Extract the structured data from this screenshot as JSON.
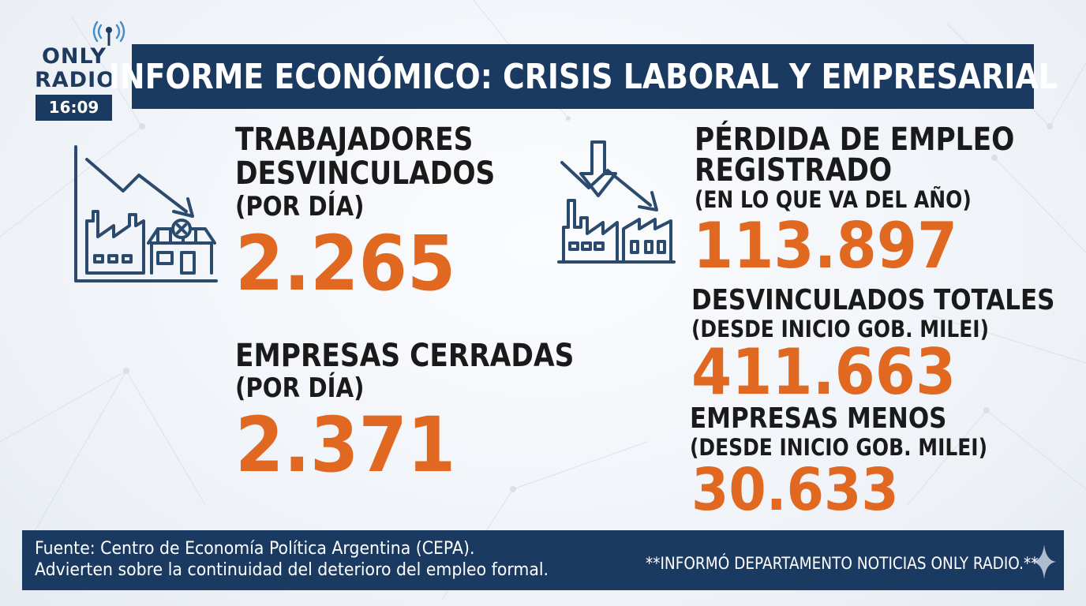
{
  "logo": {
    "line1": "ONLY",
    "line2": "RADIO",
    "time": "16:09"
  },
  "title": "INFORME ECONÓMICO: CRISIS LABORAL Y EMPRESARIAL",
  "left_stats": [
    {
      "label_lines": [
        "TRABAJADORES",
        "DESVINCULADOS"
      ],
      "sublabel": "(POR DÍA)",
      "value": "2.265"
    },
    {
      "label_lines": [
        "EMPRESAS CERRADAS"
      ],
      "sublabel": "(POR DÍA)",
      "value": "2.371"
    }
  ],
  "right_stats": [
    {
      "label_lines": [
        "PÉRDIDA DE EMPLEO",
        "REGISTRADO"
      ],
      "sublabel": "(EN LO QUE VA DEL AÑO)",
      "value": "113.897"
    },
    {
      "label_lines": [
        "DESVINCULADOS TOTALES"
      ],
      "sublabel": "(DESDE INICIO GOB. MILEI)",
      "value": "411.663"
    },
    {
      "label_lines": [
        "EMPRESAS MENOS"
      ],
      "sublabel": "(DESDE INICIO GOB. MILEI)",
      "value": "30.633"
    }
  ],
  "footer": {
    "source_line1": "Fuente: Centro de Economía Política Argentina (CEPA).",
    "source_line2": "Advierten sobre la continuidad del deterioro del empleo formal.",
    "credit": "**INFORMÓ DEPARTAMENTO NOTICIAS ONLY RADIO.**"
  },
  "colors": {
    "navy": "#1b3a61",
    "orange": "#e06820",
    "icon_blue": "#2a4a6e"
  },
  "icons": [
    "antenna-icon",
    "decline-chart-factory-icon",
    "closed-shop-icon",
    "down-arrow-factory-icon",
    "sparkle-icon"
  ]
}
